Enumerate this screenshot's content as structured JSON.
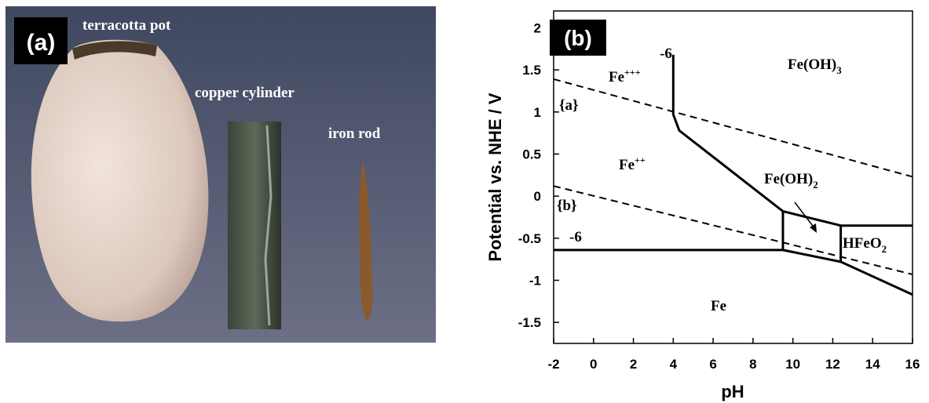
{
  "photo_panel": {
    "panel_label": "(a)",
    "labels": [
      "terracotta pot",
      "copper cylinder",
      "iron rod"
    ]
  },
  "chart_data": {
    "type": "line",
    "panel_label": "(b)",
    "x_label": "pH",
    "y_label": "Potential vs. NHE / V",
    "xlim": [
      -2,
      16
    ],
    "xticks": [
      -2,
      0,
      2,
      4,
      6,
      8,
      10,
      12,
      14,
      16
    ],
    "ylim": [
      -1.75,
      2.2
    ],
    "yticks": [
      -1.5,
      -1,
      -0.5,
      0,
      0.5,
      1,
      1.5,
      2
    ],
    "grid": false,
    "series": [
      {
        "color": "#000000",
        "dash": true,
        "x": [
          -2,
          16
        ],
        "values": [
          1.39,
          0.23
        ]
      },
      {
        "color": "#000000",
        "dash": true,
        "x": [
          -2,
          16
        ],
        "values": [
          0.12,
          -0.93
        ]
      },
      {
        "color": "#000000",
        "dash": false,
        "x": [
          -2,
          9.5
        ],
        "values": [
          -0.64,
          -0.64
        ]
      },
      {
        "color": "#000000",
        "dash": false,
        "x": [
          4,
          4,
          4.3,
          9.5
        ],
        "values": [
          1.68,
          0.97,
          0.78,
          -0.18
        ]
      },
      {
        "color": "#000000",
        "dash": false,
        "x": [
          9.5,
          9.5
        ],
        "values": [
          -0.18,
          -0.64
        ]
      },
      {
        "color": "#000000",
        "dash": false,
        "x": [
          9.5,
          12.4
        ],
        "values": [
          -0.18,
          -0.35
        ]
      },
      {
        "color": "#000000",
        "dash": false,
        "x": [
          9.5,
          12.4
        ],
        "values": [
          -0.64,
          -0.78
        ]
      },
      {
        "color": "#000000",
        "dash": false,
        "x": [
          12.4,
          12.4
        ],
        "values": [
          -0.35,
          -0.78
        ]
      },
      {
        "color": "#000000",
        "dash": false,
        "x": [
          12.4,
          16
        ],
        "values": [
          -0.35,
          -0.35
        ]
      },
      {
        "color": "#000000",
        "dash": false,
        "x": [
          12.4,
          16
        ],
        "values": [
          -0.78,
          -1.17
        ]
      }
    ],
    "annotations": [
      {
        "text": "-6"
      },
      {
        "text": "Fe",
        "sup": "+++"
      },
      {
        "text": "{a}"
      },
      {
        "text": "Fe",
        "sup": "++"
      },
      {
        "text": "{b}"
      },
      {
        "text": "Fe(OH)",
        "sub": "3"
      },
      {
        "text": "Fe(OH)",
        "sub": "2"
      },
      {
        "text": "HFeO",
        "sub": "2"
      },
      {
        "text": "-6"
      },
      {
        "text": "Fe"
      }
    ]
  }
}
